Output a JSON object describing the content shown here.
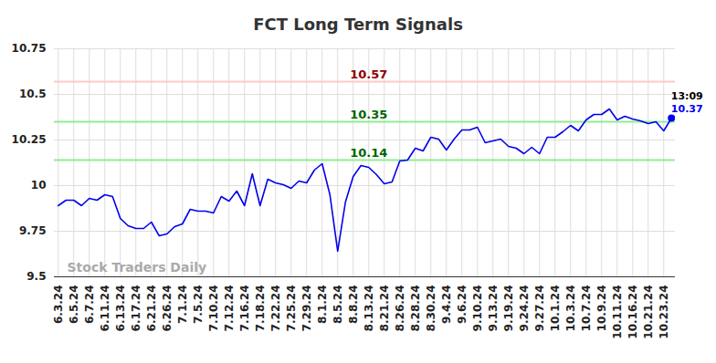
{
  "chart_data": {
    "type": "line",
    "title": "FCT Long Term Signals",
    "categories": [
      "6.3.24",
      null,
      "6.5.24",
      null,
      "6.7.24",
      null,
      "6.11.24",
      null,
      "6.13.24",
      null,
      "6.17.24",
      null,
      "6.21.24",
      null,
      "6.26.24",
      null,
      "7.1.24",
      null,
      "7.5.24",
      null,
      "7.10.24",
      null,
      "7.12.24",
      null,
      "7.16.24",
      null,
      "7.18.24",
      null,
      "7.22.24",
      null,
      "7.25.24",
      null,
      "7.29.24",
      null,
      "8.1.24",
      null,
      "8.5.24",
      null,
      "8.8.24",
      null,
      "8.13.24",
      null,
      "8.21.24",
      null,
      "8.26.24",
      null,
      "8.28.24",
      null,
      "8.30.24",
      null,
      "9.4.24",
      null,
      "9.6.24",
      null,
      "9.10.24",
      null,
      "9.13.24",
      null,
      "9.19.24",
      null,
      "9.24.24",
      null,
      "9.27.24",
      null,
      "10.1.24",
      null,
      "10.3.24",
      null,
      "10.7.24",
      null,
      "10.9.24",
      null,
      "10.11.24",
      null,
      "10.16.24",
      null,
      "10.21.24",
      null,
      "10.23.24",
      null
    ],
    "values": [
      9.89,
      9.92,
      9.92,
      9.89,
      9.93,
      9.92,
      9.95,
      9.94,
      9.82,
      9.78,
      9.765,
      9.765,
      9.8,
      9.725,
      9.735,
      9.775,
      9.79,
      9.87,
      9.86,
      9.86,
      9.85,
      9.94,
      9.915,
      9.97,
      9.89,
      10.065,
      9.89,
      10.035,
      10.015,
      10.005,
      9.985,
      10.025,
      10.015,
      10.085,
      10.12,
      9.95,
      9.64,
      9.91,
      10.05,
      10.11,
      10.1,
      10.06,
      10.01,
      10.02,
      10.135,
      10.14,
      10.205,
      10.19,
      10.265,
      10.255,
      10.195,
      10.255,
      10.305,
      10.305,
      10.32,
      10.235,
      10.245,
      10.255,
      10.215,
      10.205,
      10.175,
      10.21,
      10.175,
      10.265,
      10.265,
      10.295,
      10.33,
      10.3,
      10.36,
      10.39,
      10.39,
      10.42,
      10.36,
      10.38,
      10.365,
      10.355,
      10.34,
      10.35,
      10.3,
      10.37
    ],
    "color": "#0000ee",
    "ylim": [
      9.5,
      10.75
    ],
    "yticks": [
      9.5,
      9.75,
      10,
      10.25,
      10.5,
      10.75
    ],
    "grid": true,
    "reference_lines": [
      {
        "value": 10.57,
        "color": "#ffc8c8",
        "label_color": "#8b0000"
      },
      {
        "value": 10.35,
        "color": "#90ee90",
        "label_color": "#006400"
      },
      {
        "value": 10.14,
        "color": "#90ee90",
        "label_color": "#006400"
      }
    ],
    "last_point": {
      "time_label": "13:09",
      "marker": "circle"
    },
    "watermark": "Stock Traders Daily"
  }
}
